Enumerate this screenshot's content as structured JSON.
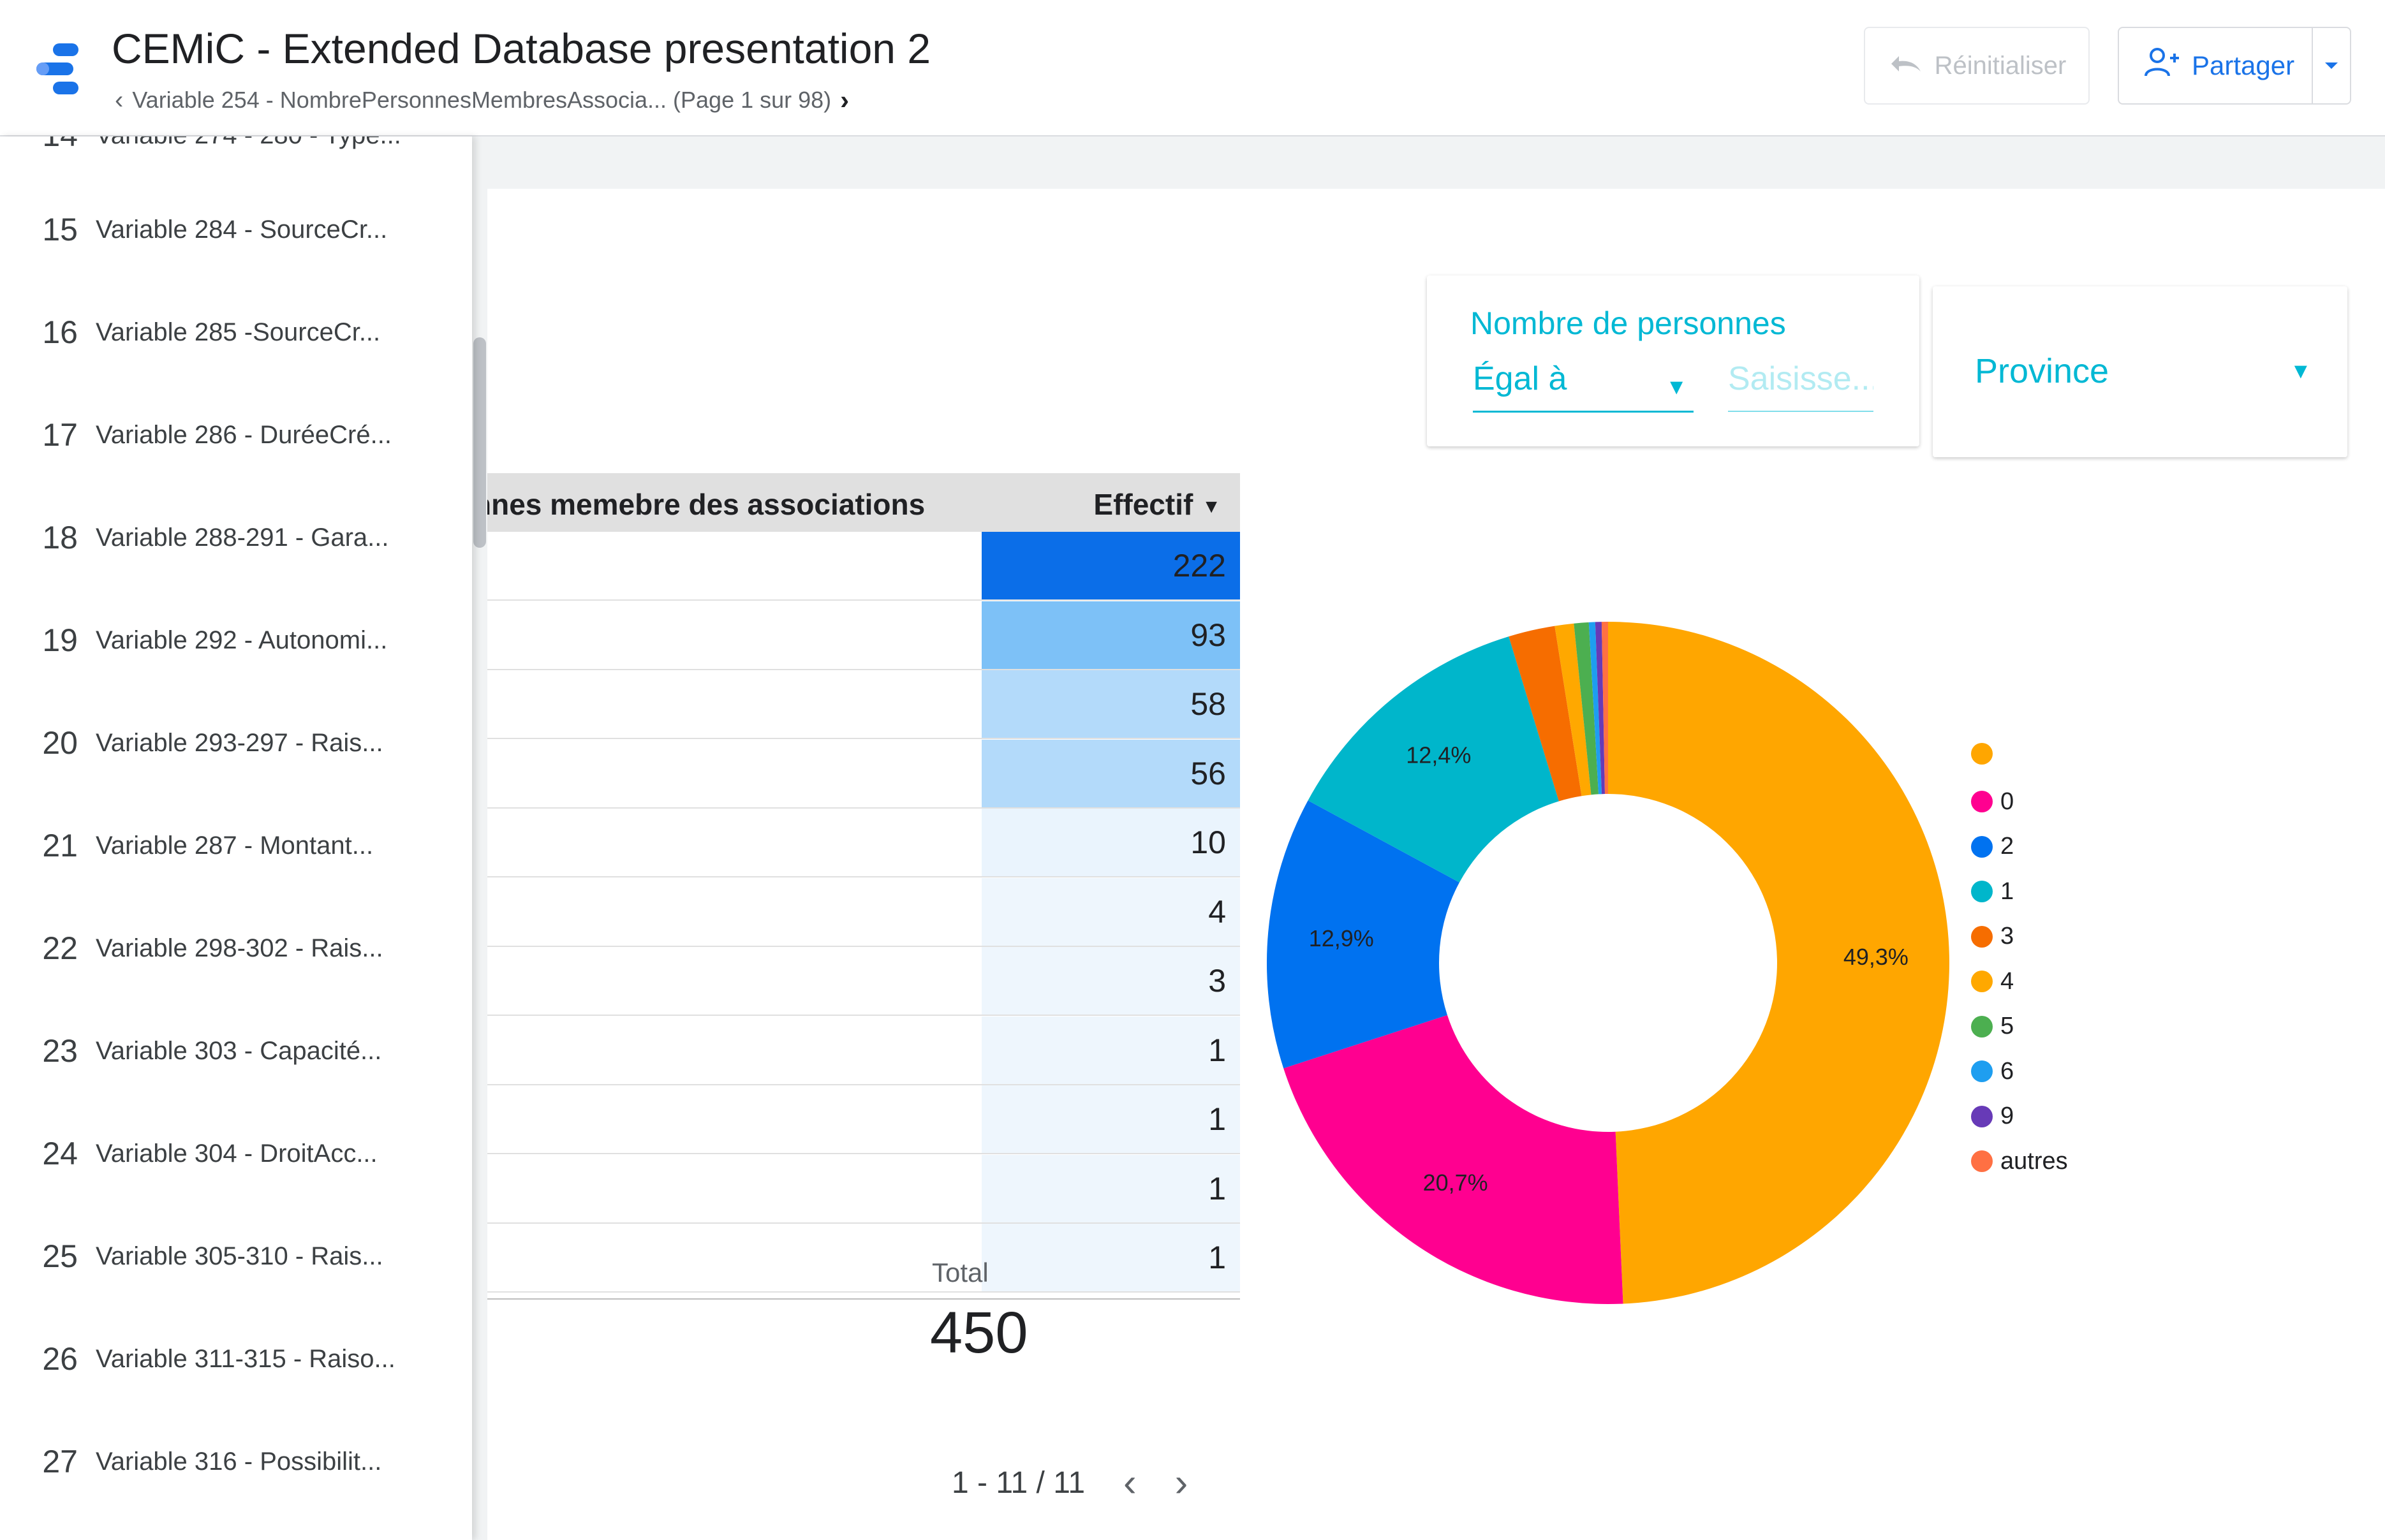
{
  "header": {
    "title": "CEMiC - Extended Database presentation 2",
    "breadcrumb": "Variable 254 - NombrePersonnesMembresAssocia... (Page 1 sur 98)",
    "reset_label": "Réinitialiser",
    "share_label": "Partager"
  },
  "sidebar": {
    "items": [
      {
        "num": "15",
        "label": "Variable 284 - SourceCr..."
      },
      {
        "num": "16",
        "label": "Variable 285 -SourceCr..."
      },
      {
        "num": "17",
        "label": "Variable 286 - DuréeCré..."
      },
      {
        "num": "18",
        "label": "Variable 288-291 - Gara..."
      },
      {
        "num": "19",
        "label": "Variable 292 - Autonomi..."
      },
      {
        "num": "20",
        "label": "Variable 293-297 - Rais..."
      },
      {
        "num": "21",
        "label": "Variable 287 - Montant..."
      },
      {
        "num": "22",
        "label": "Variable 298-302 - Rais..."
      },
      {
        "num": "23",
        "label": "Variable 303 - Capacité..."
      },
      {
        "num": "24",
        "label": "Variable 304 - DroitAcc..."
      },
      {
        "num": "25",
        "label": "Variable 305-310 - Rais..."
      },
      {
        "num": "26",
        "label": "Variable 311-315 - Raiso..."
      },
      {
        "num": "27",
        "label": "Variable 316 - Possibilit..."
      }
    ]
  },
  "filters": {
    "nombre": {
      "label": "Nombre de personnes",
      "operator": "Égal à",
      "placeholder": "Saisisse..."
    },
    "province": {
      "label": "Province"
    }
  },
  "table": {
    "dimension_header": "nnes memebre des associations",
    "metric_header": "Effectif",
    "rows": [
      {
        "value": "222",
        "fill": "#0b6ee8"
      },
      {
        "value": "93",
        "fill": "#7dc1f7"
      },
      {
        "value": "58",
        "fill": "#b3dafa"
      },
      {
        "value": "56",
        "fill": "#b3dafa"
      },
      {
        "value": "10",
        "fill": "#eaf4fd"
      },
      {
        "value": "4",
        "fill": "#eef6fd"
      },
      {
        "value": "3",
        "fill": "#eef6fd"
      },
      {
        "value": "1",
        "fill": "#eef6fd"
      },
      {
        "value": "1",
        "fill": "#eef6fd"
      },
      {
        "value": "1",
        "fill": "#eef6fd"
      },
      {
        "value": "1",
        "fill": "#eef6fd"
      }
    ],
    "total_label": "Total",
    "total_value": "450",
    "pager_text": "1 - 11 / 11"
  },
  "chart_data": {
    "type": "pie",
    "donut": true,
    "legend_position": "right",
    "slices": [
      {
        "label": "",
        "percent": 49.3,
        "display": "49,3%",
        "color": "#ffa600"
      },
      {
        "label": "0",
        "percent": 20.7,
        "display": "20,7%",
        "color": "#ff0090"
      },
      {
        "label": "2",
        "percent": 12.9,
        "display": "12,9%",
        "color": "#0072f0"
      },
      {
        "label": "1",
        "percent": 12.4,
        "display": "12,4%",
        "color": "#00b6cb"
      },
      {
        "label": "3",
        "percent": 2.2,
        "display": "",
        "color": "#f66d00"
      },
      {
        "label": "4",
        "percent": 0.9,
        "display": "",
        "color": "#ffa800"
      },
      {
        "label": "5",
        "percent": 0.7,
        "display": "",
        "color": "#4caf50"
      },
      {
        "label": "6",
        "percent": 0.3,
        "display": "",
        "color": "#1e9ef0"
      },
      {
        "label": "9",
        "percent": 0.3,
        "display": "",
        "color": "#673ab7"
      },
      {
        "label": "autres",
        "percent": 0.3,
        "display": "",
        "color": "#ff7043"
      }
    ]
  }
}
